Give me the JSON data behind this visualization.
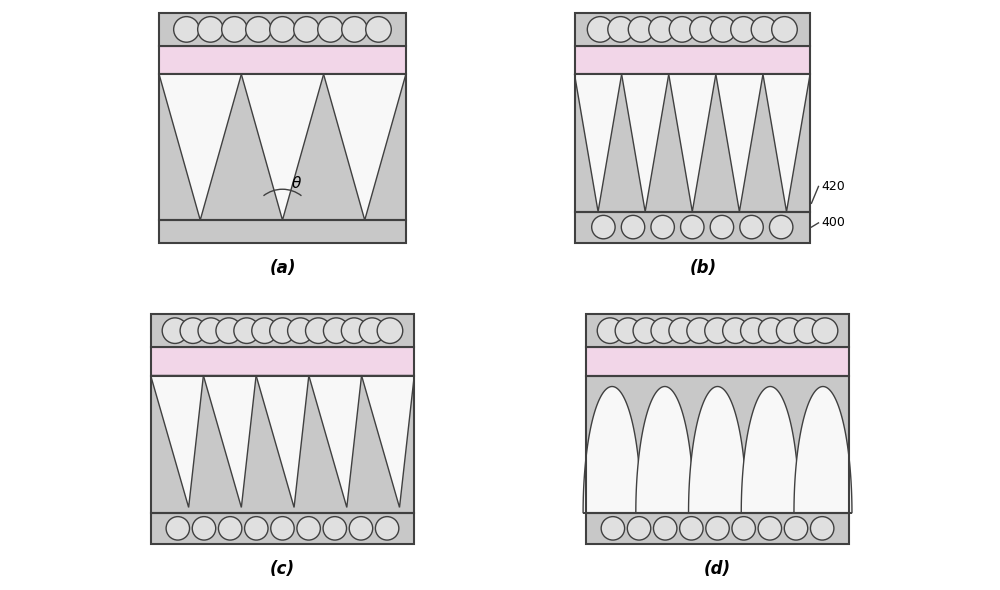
{
  "bg_color": "#ffffff",
  "gray_light": "#c8c8c8",
  "pink_color": "#f2d6e8",
  "outline_color": "#404040",
  "circle_fill": "#e0e0e0",
  "white_fill": "#f8f8f8",
  "label_a": "(a)",
  "label_b": "(b)",
  "label_c": "(c)",
  "label_d": "(d)",
  "ref_420": "420",
  "ref_400": "400"
}
